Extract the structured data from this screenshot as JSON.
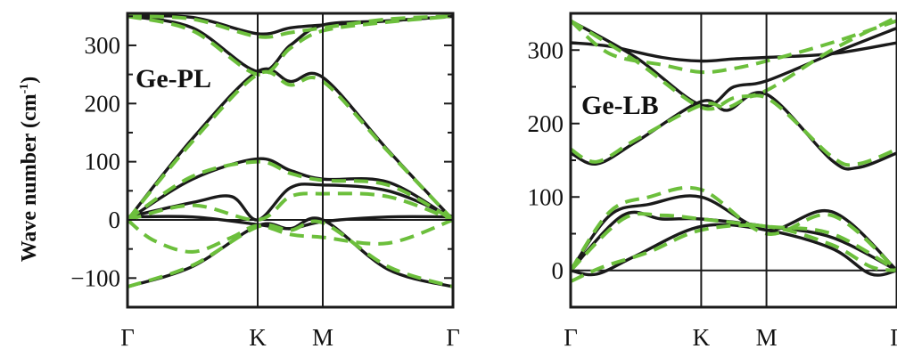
{
  "chart_data": [
    {
      "type": "line",
      "panel_label": "Ge-PL",
      "ylabel": "Wave number (cm",
      "ylabel_sup": "-1",
      "ylabel_close": ")",
      "ylim": [
        -150,
        355
      ],
      "yticks": [
        -100,
        0,
        100,
        200,
        300
      ],
      "ytick_labels": [
        "−100",
        "0",
        "100",
        "200",
        "300"
      ],
      "kpoints": [
        0,
        1,
        1.5,
        2.5
      ],
      "kpoint_labels": [
        "Γ",
        "K",
        "M",
        "Γ"
      ],
      "line_colors": {
        "solid": "#1a1a1a",
        "dashed": "#6cbf3c"
      },
      "series": [
        {
          "style": "solid",
          "x": [
            0,
            0.5,
            1,
            1.25,
            1.5,
            2,
            2.5
          ],
          "y": [
            350,
            348,
            320,
            330,
            335,
            342,
            350
          ]
        },
        {
          "style": "solid",
          "x": [
            0,
            0.5,
            1,
            1.25,
            1.5,
            2,
            2.5
          ],
          "y": [
            350,
            330,
            255,
            300,
            335,
            342,
            350
          ]
        },
        {
          "style": "solid",
          "x": [
            0,
            0.5,
            1,
            1.25,
            1.5,
            2,
            2.5
          ],
          "y": [
            0,
            140,
            255,
            238,
            245,
            120,
            0
          ]
        },
        {
          "style": "solid",
          "x": [
            0,
            0.5,
            1,
            1.25,
            1.5,
            2,
            2.5
          ],
          "y": [
            0,
            70,
            105,
            85,
            70,
            65,
            0
          ]
        },
        {
          "style": "solid",
          "x": [
            0,
            0.5,
            0.8,
            1,
            1.25,
            1.5,
            2,
            2.5
          ],
          "y": [
            5,
            30,
            40,
            0,
            55,
            60,
            50,
            5
          ]
        },
        {
          "style": "solid",
          "x": [
            0,
            0.5,
            1,
            1.25,
            1.5,
            2,
            2.5
          ],
          "y": [
            5,
            5,
            -8,
            -15,
            -3,
            5,
            5
          ]
        },
        {
          "style": "solid",
          "x": [
            0,
            0.5,
            1,
            1.25,
            1.5,
            2,
            2.5
          ],
          "y": [
            -115,
            -80,
            -10,
            -15,
            0,
            -85,
            -115
          ]
        },
        {
          "style": "dashed",
          "x": [
            0,
            0.5,
            1,
            1.25,
            1.5,
            2,
            2.5
          ],
          "y": [
            350,
            345,
            315,
            322,
            330,
            345,
            350
          ]
        },
        {
          "style": "dashed",
          "x": [
            0,
            0.5,
            1,
            1.25,
            1.5,
            2,
            2.5
          ],
          "y": [
            350,
            325,
            250,
            295,
            325,
            340,
            350
          ]
        },
        {
          "style": "dashed",
          "x": [
            0,
            0.5,
            1,
            1.25,
            1.5,
            2,
            2.5
          ],
          "y": [
            0,
            135,
            250,
            232,
            238,
            118,
            0
          ]
        },
        {
          "style": "dashed",
          "x": [
            0,
            0.5,
            1,
            1.25,
            1.5,
            2,
            2.5
          ],
          "y": [
            0,
            75,
            100,
            80,
            68,
            60,
            0
          ]
        },
        {
          "style": "dashed",
          "x": [
            0,
            0.5,
            1,
            1.25,
            1.5,
            2,
            2.5
          ],
          "y": [
            0,
            25,
            0,
            40,
            45,
            40,
            0
          ]
        },
        {
          "style": "dashed",
          "x": [
            0,
            0.2,
            0.5,
            0.8,
            1,
            1.25,
            1.5,
            2,
            2.5
          ],
          "y": [
            0,
            -35,
            -55,
            -30,
            -10,
            -25,
            -30,
            -40,
            0
          ]
        },
        {
          "style": "dashed",
          "x": [
            0,
            0.5,
            1,
            1.25,
            1.5,
            2,
            2.5
          ],
          "y": [
            -115,
            -78,
            -12,
            -18,
            -5,
            -80,
            -115
          ]
        }
      ]
    },
    {
      "type": "line",
      "panel_label": "Ge-LB",
      "ylim": [
        -50,
        350
      ],
      "yticks": [
        0,
        100,
        200,
        300
      ],
      "ytick_labels": [
        "0",
        "100",
        "200",
        "300"
      ],
      "kpoints": [
        0,
        1,
        1.5,
        2.5
      ],
      "kpoint_labels": [
        "Γ",
        "K",
        "M",
        "Γ"
      ],
      "line_colors": {
        "solid": "#1a1a1a",
        "dashed": "#6cbf3c"
      },
      "series": [
        {
          "style": "solid",
          "x": [
            0,
            0.3,
            0.7,
            1,
            1.25,
            1.5,
            2,
            2.5
          ],
          "y": [
            310,
            305,
            290,
            285,
            288,
            290,
            295,
            310
          ]
        },
        {
          "style": "solid",
          "x": [
            0,
            0.5,
            1,
            1.25,
            1.5,
            2,
            2.5
          ],
          "y": [
            340,
            290,
            225,
            250,
            258,
            295,
            330
          ]
        },
        {
          "style": "solid",
          "x": [
            0,
            0.2,
            0.5,
            1,
            1.2,
            1.5,
            2,
            2.2,
            2.5
          ],
          "y": [
            160,
            145,
            175,
            230,
            218,
            240,
            150,
            140,
            160
          ]
        },
        {
          "style": "solid",
          "x": [
            0,
            0.3,
            0.6,
            1,
            1.5,
            2,
            2.5
          ],
          "y": [
            0,
            75,
            90,
            100,
            55,
            80,
            0
          ]
        },
        {
          "style": "solid",
          "x": [
            0,
            0.4,
            0.7,
            1,
            1.5,
            2,
            2.5
          ],
          "y": [
            0,
            75,
            70,
            70,
            60,
            45,
            0
          ]
        },
        {
          "style": "solid",
          "x": [
            0,
            0.2,
            0.5,
            1,
            1.5,
            2,
            2.3,
            2.5
          ],
          "y": [
            0,
            -5,
            20,
            60,
            55,
            30,
            -5,
            0
          ]
        },
        {
          "style": "dashed",
          "x": [
            0,
            0.3,
            0.7,
            1,
            1.25,
            1.5,
            2,
            2.5
          ],
          "y": [
            340,
            295,
            280,
            270,
            275,
            285,
            310,
            340
          ]
        },
        {
          "style": "dashed",
          "x": [
            0,
            0.5,
            1,
            1.25,
            1.5,
            2,
            2.5
          ],
          "y": [
            340,
            285,
            222,
            235,
            245,
            300,
            345
          ]
        },
        {
          "style": "dashed",
          "x": [
            0,
            0.2,
            0.5,
            1,
            1.2,
            1.5,
            2,
            2.2,
            2.5
          ],
          "y": [
            165,
            148,
            178,
            225,
            222,
            235,
            155,
            145,
            165
          ]
        },
        {
          "style": "dashed",
          "x": [
            0,
            0.3,
            0.6,
            1,
            1.5,
            2,
            2.5
          ],
          "y": [
            0,
            80,
            100,
            110,
            50,
            75,
            0
          ]
        },
        {
          "style": "dashed",
          "x": [
            0,
            0.4,
            0.7,
            1,
            1.5,
            2,
            2.5
          ],
          "y": [
            0,
            70,
            75,
            70,
            60,
            50,
            0
          ]
        },
        {
          "style": "dashed",
          "x": [
            0,
            0.25,
            0.6,
            1,
            1.5,
            2,
            2.3,
            2.5
          ],
          "y": [
            -15,
            5,
            25,
            55,
            60,
            35,
            5,
            0
          ]
        }
      ]
    }
  ]
}
